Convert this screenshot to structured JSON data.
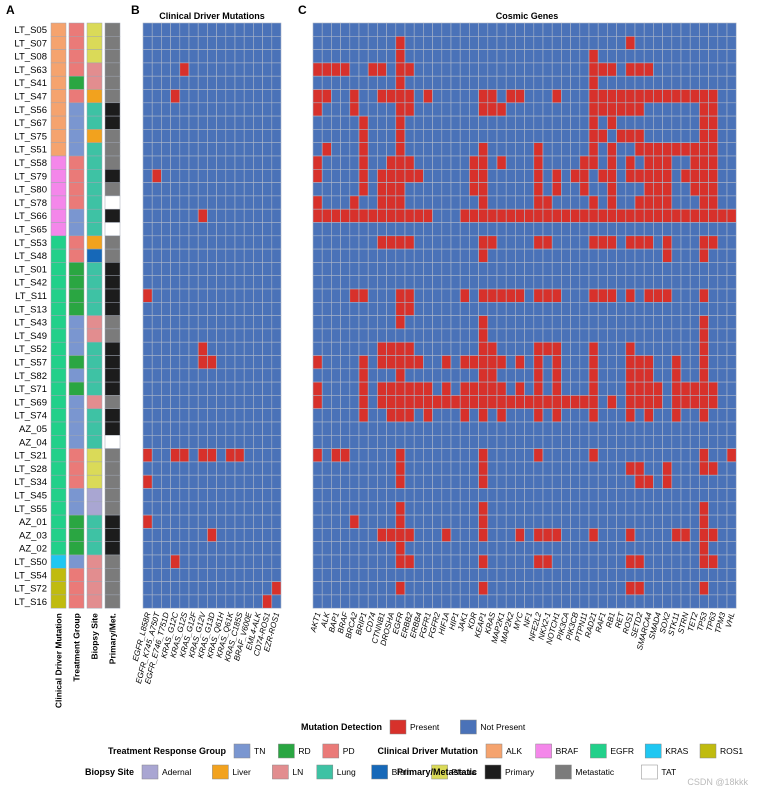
{
  "panels": {
    "a": "A",
    "b": "B",
    "c": "C"
  },
  "titles": {
    "driver": "Clinical Driver Mutations",
    "cosmic": "Cosmic Genes"
  },
  "watermark": "CSDN @18kkk",
  "colors": {
    "present": "#d7312b",
    "absent": "#4a72b8",
    "grid": "#aab5c8",
    "TN": "#7a96d0",
    "RD": "#2aa642",
    "PD": "#ea7a78",
    "ALK": "#f5a36e",
    "BRAF": "#f487ea",
    "EGFR": "#22d08a",
    "KRAS": "#1fc7f2",
    "ROS1": "#c0bb0f",
    "Adernal": "#a9a6d2",
    "Liver": "#f2a21e",
    "LN": "#e28d8f",
    "Lung": "#3ec2a4",
    "Brain": "#1668b8",
    "Pleura": "#dada58",
    "Primary": "#1c1c1c",
    "Metastatic": "#7b7b7b",
    "TAT": "#ffffff"
  },
  "chart_data": {
    "type": "heatmap",
    "samples": [
      "LT_S05",
      "LT_S07",
      "LT_S08",
      "LT_S63",
      "LT_S41",
      "LT_S47",
      "LT_S56",
      "LT_S67",
      "LT_S75",
      "LT_S51",
      "LT_S58",
      "LT_S79",
      "LT_S80",
      "LT_S78",
      "LT_S66",
      "LT_S65",
      "LT_S53",
      "LT_S48",
      "LT_S01",
      "LT_S42",
      "LT_S11",
      "LT_S13",
      "LT_S43",
      "LT_S49",
      "LT_S52",
      "LT_S57",
      "LT_S82",
      "LT_S71",
      "LT_S69",
      "LT_S74",
      "AZ_05",
      "AZ_04",
      "LT_S21",
      "LT_S28",
      "LT_S34",
      "LT_S45",
      "LT_S55",
      "AZ_01",
      "AZ_03",
      "AZ_02",
      "LT_S50",
      "LT_S54",
      "LT_S72",
      "LT_S16"
    ],
    "annotation_labels": [
      "Clinical Driver Mutation",
      "Treatment Group",
      "Biopsy Site",
      "Primary/Met."
    ],
    "annotations": {
      "driver": [
        "ALK",
        "ALK",
        "ALK",
        "ALK",
        "ALK",
        "ALK",
        "ALK",
        "ALK",
        "ALK",
        "ALK",
        "BRAF",
        "BRAF",
        "BRAF",
        "BRAF",
        "BRAF",
        "BRAF",
        "EGFR",
        "EGFR",
        "EGFR",
        "EGFR",
        "EGFR",
        "EGFR",
        "EGFR",
        "EGFR",
        "EGFR",
        "EGFR",
        "EGFR",
        "EGFR",
        "EGFR",
        "EGFR",
        "EGFR",
        "EGFR",
        "EGFR",
        "EGFR",
        "EGFR",
        "EGFR",
        "EGFR",
        "EGFR",
        "EGFR",
        "EGFR",
        "KRAS",
        "ROS1",
        "ROS1",
        "ROS1"
      ],
      "treatment": [
        "PD",
        "PD",
        "PD",
        "PD",
        "RD",
        "PD",
        "TN",
        "TN",
        "TN",
        "TN",
        "PD",
        "PD",
        "PD",
        "PD",
        "TN",
        "TN",
        "PD",
        "PD",
        "RD",
        "RD",
        "RD",
        "RD",
        "TN",
        "TN",
        "TN",
        "RD",
        "TN",
        "RD",
        "TN",
        "TN",
        "TN",
        "TN",
        "PD",
        "PD",
        "PD",
        "TN",
        "TN",
        "RD",
        "RD",
        "RD",
        "TN",
        "PD",
        "PD",
        "PD"
      ],
      "biopsy": [
        "Pleura",
        "Pleura",
        "Pleura",
        "LN",
        "LN",
        "Liver",
        "Lung",
        "Lung",
        "Liver",
        "Lung",
        "Lung",
        "Lung",
        "Lung",
        "Lung",
        "Lung",
        "Lung",
        "Liver",
        "Brain",
        "Lung",
        "Lung",
        "Lung",
        "Lung",
        "LN",
        "LN",
        "Lung",
        "Lung",
        "Lung",
        "Lung",
        "LN",
        "Lung",
        "Lung",
        "Lung",
        "Pleura",
        "Pleura",
        "Pleura",
        "Adernal",
        "Adernal",
        "Lung",
        "Lung",
        "Lung",
        "LN",
        "LN",
        "LN",
        "LN"
      ],
      "site": [
        "Metastatic",
        "Metastatic",
        "Metastatic",
        "Metastatic",
        "Metastatic",
        "Metastatic",
        "Primary",
        "Primary",
        "Metastatic",
        "Metastatic",
        "Metastatic",
        "Primary",
        "Metastatic",
        "TAT",
        "Primary",
        "TAT",
        "Metastatic",
        "Metastatic",
        "Primary",
        "Primary",
        "Primary",
        "Primary",
        "Metastatic",
        "Metastatic",
        "Primary",
        "Primary",
        "Primary",
        "Primary",
        "Metastatic",
        "Primary",
        "Primary",
        "TAT",
        "Metastatic",
        "Metastatic",
        "Metastatic",
        "Metastatic",
        "Metastatic",
        "Primary",
        "Primary",
        "Primary",
        "Metastatic",
        "Metastatic",
        "Metastatic",
        "Metastatic"
      ]
    },
    "driver_genes": [
      "EGFR_L858R",
      "EGFR_K745_A750T",
      "EGFR_E746_T751D",
      "KRAS_G12C",
      "KRAS_G12S",
      "KRAS_G12F",
      "KRAS_G12V",
      "KRAS_G13D",
      "KRAS_Q61H",
      "KRAS_Q61K",
      "KRAS_C185S",
      "BRAF_V600E",
      "EML4-ALK",
      "CD74-ROS1",
      "EZR-ROS1"
    ],
    "driver_present": [
      [],
      [],
      [],
      [
        4
      ],
      [],
      [
        3
      ],
      [],
      [],
      [],
      [],
      [],
      [
        1
      ],
      [],
      [],
      [
        6
      ],
      [],
      [],
      [],
      [],
      [],
      [
        0
      ],
      [],
      [],
      [],
      [
        6
      ],
      [
        6,
        7
      ],
      [],
      [],
      [],
      [],
      [],
      [],
      [
        0,
        3,
        4,
        6,
        7,
        9,
        10
      ],
      [],
      [
        0
      ],
      [],
      [],
      [
        0
      ],
      [
        7
      ],
      [],
      [
        3
      ],
      [],
      [
        14
      ],
      [
        13
      ]
    ],
    "cosmic_genes": [
      "AKT1",
      "ALK",
      "BAP1",
      "BRAF",
      "BRCA2",
      "BRIP1",
      "CD74",
      "CTNNB1",
      "DROSHA",
      "EGFR",
      "ERBB2",
      "ERBB4",
      "FGFR1",
      "FGFR2",
      "HIF1A",
      "HIP1",
      "JAK1",
      "KDR",
      "KEAP1",
      "KRAS",
      "MAP2K1",
      "MAP2K2",
      "MYC",
      "NF1",
      "NFE2L2",
      "NKX2-1",
      "NOTCH1",
      "PIK3CA",
      "PIK3CB",
      "PTPN11",
      "RAD21",
      "RAF1",
      "RB1",
      "RET",
      "ROS1",
      "SETD2",
      "SMARCA4",
      "SMAD4",
      "SOX2",
      "STK11",
      "STRN",
      "TET2",
      "TP53",
      "TP63",
      "TPM3",
      "VHL"
    ],
    "cosmic_present": [
      [],
      [
        9,
        34
      ],
      [
        9,
        30
      ],
      [
        0,
        1,
        2,
        3,
        6,
        7,
        9,
        10,
        30,
        31,
        32,
        34,
        35,
        36
      ],
      [
        9,
        30
      ],
      [
        0,
        1,
        4,
        7,
        8,
        9,
        10,
        12,
        18,
        19,
        21,
        22,
        26,
        30,
        31,
        32,
        33,
        34,
        35,
        36,
        37,
        38,
        39,
        40,
        41,
        42,
        43
      ],
      [
        0,
        4,
        9,
        10,
        18,
        19,
        20,
        30,
        31,
        32,
        33,
        34,
        35,
        42,
        43
      ],
      [
        5,
        9,
        30,
        32,
        42,
        43
      ],
      [
        5,
        9,
        30,
        31,
        33,
        34,
        35,
        42,
        43
      ],
      [
        1,
        5,
        9,
        18,
        24,
        30,
        32,
        35,
        36,
        37,
        38,
        39,
        40,
        41,
        42,
        43
      ],
      [
        0,
        5,
        8,
        9,
        10,
        17,
        18,
        20,
        24,
        29,
        30,
        32,
        34,
        36,
        37,
        38,
        41,
        42,
        43
      ],
      [
        0,
        5,
        7,
        8,
        9,
        10,
        11,
        17,
        18,
        24,
        26,
        28,
        29,
        31,
        32,
        34,
        35,
        36,
        37,
        38,
        40,
        41,
        42,
        43
      ],
      [
        5,
        7,
        8,
        9,
        17,
        18,
        24,
        26,
        29,
        32,
        36,
        37,
        38,
        41,
        42,
        43
      ],
      [
        0,
        4,
        7,
        8,
        9,
        18,
        24,
        25,
        30,
        32,
        35,
        36,
        37,
        38,
        42,
        43
      ],
      [
        0,
        1,
        2,
        3,
        4,
        5,
        6,
        7,
        8,
        9,
        10,
        11,
        12,
        16,
        17,
        18,
        19,
        20,
        21,
        22,
        23,
        24,
        25,
        26,
        27,
        28,
        29,
        30,
        31,
        32,
        33,
        34,
        35,
        36,
        37,
        38,
        39,
        40,
        41,
        42,
        43,
        44,
        45
      ],
      [],
      [
        7,
        8,
        9,
        10,
        18,
        19,
        24,
        25,
        30,
        31,
        32,
        34,
        35,
        36,
        38,
        42,
        43
      ],
      [
        18,
        38,
        42
      ],
      [],
      [],
      [
        4,
        5,
        9,
        10,
        16,
        18,
        19,
        20,
        21,
        22,
        24,
        25,
        26,
        30,
        31,
        32,
        34,
        36,
        37,
        38,
        42
      ],
      [
        9,
        10
      ],
      [
        9,
        18,
        42
      ],
      [
        18,
        42
      ],
      [
        7,
        8,
        9,
        10,
        18,
        19,
        24,
        25,
        26,
        30,
        34,
        42
      ],
      [
        0,
        5,
        7,
        8,
        9,
        10,
        11,
        14,
        16,
        17,
        18,
        19,
        20,
        22,
        24,
        26,
        30,
        34,
        35,
        36,
        39,
        42
      ],
      [
        5,
        9,
        18,
        19,
        24,
        26,
        30,
        34,
        35,
        36,
        39,
        42
      ],
      [
        0,
        5,
        7,
        8,
        9,
        10,
        11,
        12,
        14,
        16,
        17,
        18,
        19,
        20,
        22,
        24,
        26,
        30,
        34,
        35,
        36,
        37,
        39,
        40,
        41,
        42,
        43
      ],
      [
        0,
        5,
        7,
        8,
        9,
        10,
        11,
        12,
        13,
        14,
        15,
        16,
        17,
        18,
        19,
        20,
        21,
        22,
        23,
        24,
        25,
        26,
        27,
        28,
        29,
        30,
        32,
        34,
        35,
        36,
        37,
        39,
        40,
        41,
        42,
        43
      ],
      [
        5,
        8,
        9,
        10,
        12,
        16,
        18,
        20,
        24,
        26,
        30,
        34,
        36,
        39,
        42
      ],
      [],
      [],
      [
        0,
        2,
        3,
        9,
        18,
        24,
        30,
        42,
        45
      ],
      [
        9,
        18,
        34,
        35,
        38,
        42,
        43
      ],
      [
        9,
        18,
        35,
        36,
        38
      ],
      [],
      [
        9,
        18,
        42
      ],
      [
        4,
        9,
        18,
        42
      ],
      [
        7,
        8,
        9,
        10,
        14,
        18,
        22,
        24,
        25,
        26,
        30,
        34,
        39,
        40,
        42,
        43
      ],
      [
        9,
        42
      ],
      [
        9,
        10,
        18,
        24,
        25,
        34,
        35,
        42,
        43
      ],
      [],
      [
        9,
        18,
        34,
        35,
        42
      ],
      []
    ]
  },
  "legend": {
    "mutation": {
      "title": "Mutation Detection",
      "items": [
        {
          "label": "Present",
          "color": "present"
        },
        {
          "label": "Not Present",
          "color": "absent"
        }
      ]
    },
    "treatment": {
      "title": "Treatment Response Group",
      "items": [
        {
          "label": "TN",
          "color": "TN"
        },
        {
          "label": "RD",
          "color": "RD"
        },
        {
          "label": "PD",
          "color": "PD"
        }
      ]
    },
    "driver": {
      "title": "Clinical Driver Mutation",
      "items": [
        {
          "label": "ALK",
          "color": "ALK"
        },
        {
          "label": "BRAF",
          "color": "BRAF"
        },
        {
          "label": "EGFR",
          "color": "EGFR"
        },
        {
          "label": "KRAS",
          "color": "KRAS"
        },
        {
          "label": "ROS1",
          "color": "ROS1"
        }
      ]
    },
    "biopsy": {
      "title": "Biopsy Site",
      "items": [
        {
          "label": "Adernal",
          "color": "Adernal"
        },
        {
          "label": "Liver",
          "color": "Liver"
        },
        {
          "label": "LN",
          "color": "LN"
        },
        {
          "label": "Lung",
          "color": "Lung"
        },
        {
          "label": "Brain",
          "color": "Brain"
        },
        {
          "label": "Pleura",
          "color": "Pleura"
        }
      ]
    },
    "site": {
      "title": "Primary/Metastatic",
      "items": [
        {
          "label": "Primary",
          "color": "Primary"
        },
        {
          "label": "Metastatic",
          "color": "Metastatic"
        },
        {
          "label": "TAT",
          "color": "TAT"
        }
      ]
    }
  }
}
